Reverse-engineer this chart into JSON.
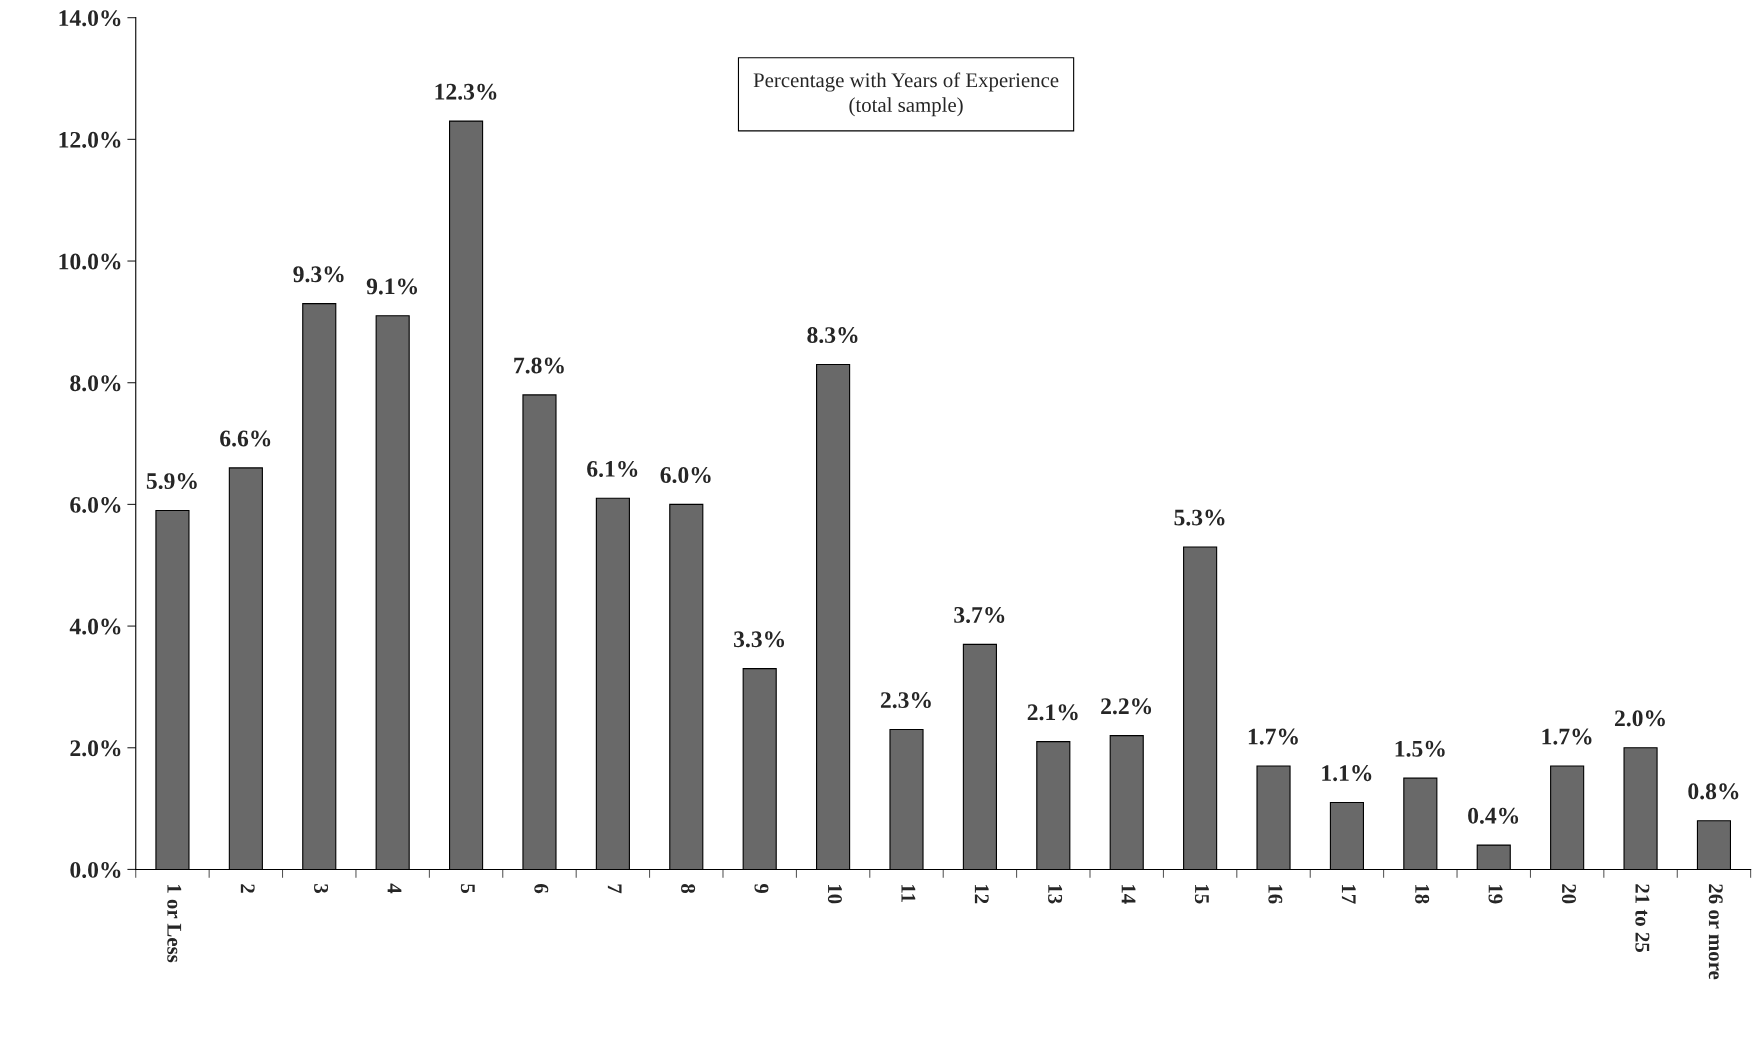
{
  "chart_data": {
    "type": "bar",
    "title": "Percentage with Years of Experience\n(total sample)",
    "categories": [
      "1 or Less",
      "2",
      "3",
      "4",
      "5",
      "6",
      "7",
      "8",
      "9",
      "10",
      "11",
      "12",
      "13",
      "14",
      "15",
      "16",
      "17",
      "18",
      "19",
      "20",
      "21 to 25",
      "26 or more"
    ],
    "values": [
      5.9,
      6.6,
      9.3,
      9.1,
      12.3,
      7.8,
      6.1,
      6.0,
      3.3,
      8.3,
      2.3,
      3.7,
      2.1,
      2.2,
      5.3,
      1.7,
      1.1,
      1.5,
      0.4,
      1.7,
      2.0,
      0.8
    ],
    "value_labels": [
      "5.9%",
      "6.6%",
      "9.3%",
      "9.1%",
      "12.3%",
      "7.8%",
      "6.1%",
      "6.0%",
      "3.3%",
      "8.3%",
      "2.3%",
      "3.7%",
      "2.1%",
      "2.2%",
      "5.3%",
      "1.7%",
      "1.1%",
      "1.5%",
      "0.4%",
      "1.7%",
      "2.0%",
      "0.8%"
    ],
    "color": "#696969",
    "ylim": [
      0,
      14
    ],
    "yticks": [
      {
        "value": 0,
        "label": "0.0%"
      },
      {
        "value": 2,
        "label": "2.0%"
      },
      {
        "value": 4,
        "label": "4.0%"
      },
      {
        "value": 6,
        "label": "6.0%"
      },
      {
        "value": 8,
        "label": "8.0%"
      },
      {
        "value": 10,
        "label": "10.0%"
      },
      {
        "value": 12,
        "label": "12.0%"
      },
      {
        "value": 14,
        "label": "14.0%"
      }
    ],
    "grid": false
  }
}
